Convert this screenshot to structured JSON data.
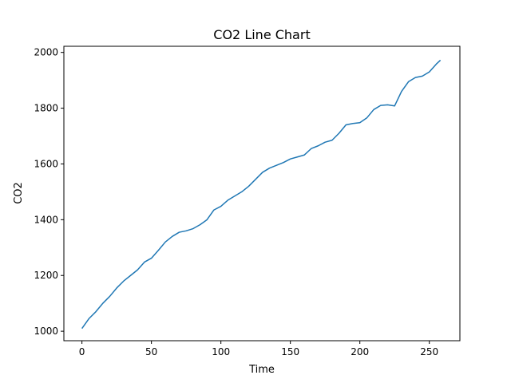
{
  "chart_data": {
    "type": "line",
    "title": "CO2 Line Chart",
    "xlabel": "Time",
    "ylabel": "CO2",
    "xlim": [
      -13,
      272
    ],
    "ylim": [
      966,
      2022
    ],
    "xticks": [
      0,
      50,
      100,
      150,
      200,
      250
    ],
    "yticks": [
      1000,
      1200,
      1400,
      1600,
      1800,
      2000
    ],
    "grid": false,
    "line_color": "#1f77b4",
    "series": [
      {
        "x": [
          0,
          5,
          10,
          15,
          20,
          25,
          30,
          35,
          40,
          45,
          50,
          55,
          60,
          65,
          70,
          75,
          80,
          85,
          90,
          95,
          100,
          105,
          110,
          115,
          120,
          125,
          130,
          135,
          140,
          145,
          150,
          155,
          160,
          165,
          170,
          175,
          180,
          185,
          190,
          195,
          200,
          205,
          210,
          215,
          220,
          225,
          230,
          235,
          240,
          245,
          250,
          255,
          258
        ],
        "values": [
          1010,
          1045,
          1070,
          1100,
          1125,
          1155,
          1180,
          1200,
          1220,
          1248,
          1262,
          1290,
          1320,
          1340,
          1355,
          1360,
          1368,
          1382,
          1400,
          1435,
          1448,
          1470,
          1485,
          1500,
          1520,
          1545,
          1570,
          1585,
          1595,
          1605,
          1618,
          1625,
          1632,
          1655,
          1665,
          1678,
          1685,
          1710,
          1740,
          1745,
          1748,
          1765,
          1795,
          1810,
          1812,
          1808,
          1860,
          1895,
          1910,
          1915,
          1930,
          1958,
          1972
        ]
      }
    ]
  }
}
